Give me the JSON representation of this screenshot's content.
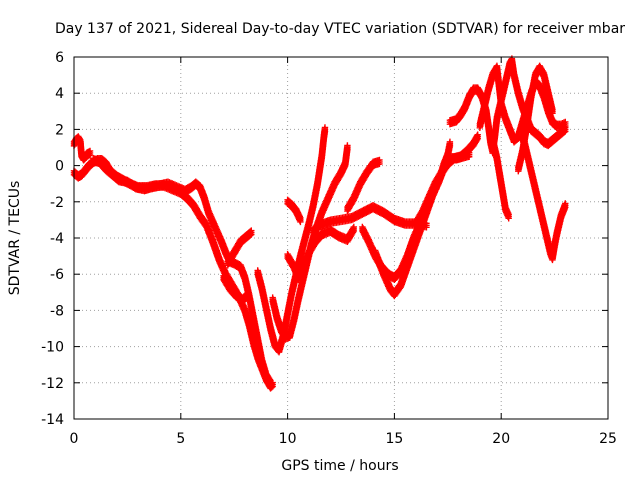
{
  "chart_data": {
    "type": "scatter",
    "title": "Day 137 of 2021, Sidereal Day-to-day VTEC variation (SDTVAR) for receiver mbar",
    "xlabel": "GPS time / hours",
    "ylabel": "SDTVAR / TECUs",
    "xlim": [
      0,
      25
    ],
    "ylim": [
      -14,
      6
    ],
    "xticks": [
      "0",
      "5",
      "10",
      "15",
      "20",
      "25"
    ],
    "yticks": [
      "-14",
      "-12",
      "-10",
      "-8",
      "-6",
      "-4",
      "-2",
      "0",
      "2",
      "4",
      "6"
    ],
    "grid": true,
    "marker": "+",
    "color": "#ff0000",
    "traces": [
      [
        [
          0.0,
          1.2
        ],
        [
          0.1,
          1.4
        ],
        [
          0.2,
          1.5
        ],
        [
          0.3,
          1.3
        ],
        [
          0.35,
          0.6
        ],
        [
          0.45,
          0.4
        ],
        [
          0.6,
          0.6
        ],
        [
          0.75,
          0.7
        ]
      ],
      [
        [
          0.0,
          -0.4
        ],
        [
          0.2,
          -0.6
        ],
        [
          0.35,
          -0.5
        ],
        [
          0.5,
          -0.3
        ],
        [
          0.7,
          0.0
        ],
        [
          0.9,
          0.2
        ],
        [
          1.1,
          0.3
        ],
        [
          1.3,
          0.3
        ],
        [
          1.5,
          0.1
        ],
        [
          1.7,
          -0.3
        ],
        [
          2.0,
          -0.6
        ],
        [
          2.3,
          -0.8
        ],
        [
          2.6,
          -1.0
        ],
        [
          3.0,
          -1.2
        ],
        [
          3.4,
          -1.2
        ],
        [
          3.8,
          -1.1
        ],
        [
          4.2,
          -1.1
        ],
        [
          4.6,
          -1.3
        ],
        [
          5.0,
          -1.5
        ],
        [
          5.3,
          -1.8
        ],
        [
          5.6,
          -2.2
        ],
        [
          5.9,
          -2.8
        ],
        [
          6.2,
          -3.3
        ],
        [
          6.5,
          -4.2
        ],
        [
          6.8,
          -5.2
        ],
        [
          7.1,
          -6.0
        ],
        [
          7.4,
          -6.6
        ],
        [
          7.7,
          -7.2
        ],
        [
          8.0,
          -8.0
        ],
        [
          8.2,
          -8.8
        ],
        [
          8.4,
          -9.8
        ],
        [
          8.6,
          -10.6
        ],
        [
          8.8,
          -11.2
        ],
        [
          9.0,
          -11.8
        ],
        [
          9.2,
          -12.2
        ],
        [
          9.3,
          -12.1
        ]
      ],
      [
        [
          0.9,
          0.3
        ],
        [
          1.2,
          0.2
        ],
        [
          1.5,
          -0.2
        ],
        [
          1.8,
          -0.5
        ],
        [
          2.1,
          -0.8
        ],
        [
          2.5,
          -0.9
        ],
        [
          2.9,
          -1.2
        ],
        [
          3.3,
          -1.3
        ],
        [
          3.6,
          -1.2
        ],
        [
          4.0,
          -1.1
        ],
        [
          4.4,
          -1.0
        ],
        [
          4.8,
          -1.2
        ],
        [
          5.2,
          -1.4
        ],
        [
          5.5,
          -1.2
        ],
        [
          5.7,
          -1.0
        ],
        [
          5.9,
          -1.2
        ],
        [
          6.1,
          -1.8
        ],
        [
          6.3,
          -2.6
        ],
        [
          6.6,
          -3.4
        ],
        [
          6.9,
          -4.2
        ],
        [
          7.1,
          -4.8
        ],
        [
          7.3,
          -5.3
        ],
        [
          7.5,
          -5.4
        ],
        [
          7.8,
          -5.6
        ],
        [
          8.0,
          -6.2
        ],
        [
          8.2,
          -7.2
        ],
        [
          8.4,
          -8.4
        ],
        [
          8.6,
          -9.6
        ],
        [
          8.8,
          -10.8
        ],
        [
          9.0,
          -11.6
        ],
        [
          9.2,
          -12.0
        ]
      ],
      [
        [
          7.0,
          -6.2
        ],
        [
          7.3,
          -6.8
        ],
        [
          7.6,
          -7.2
        ],
        [
          7.9,
          -7.4
        ],
        [
          8.1,
          -7.2
        ]
      ],
      [
        [
          7.2,
          -5.4
        ],
        [
          7.5,
          -4.8
        ],
        [
          7.8,
          -4.2
        ],
        [
          8.1,
          -3.9
        ],
        [
          8.3,
          -3.7
        ]
      ],
      [
        [
          8.6,
          -5.9
        ],
        [
          8.8,
          -6.8
        ],
        [
          9.0,
          -7.9
        ],
        [
          9.2,
          -9.0
        ],
        [
          9.4,
          -9.9
        ],
        [
          9.6,
          -10.2
        ],
        [
          9.8,
          -9.4
        ],
        [
          10.0,
          -8.2
        ],
        [
          10.2,
          -7.0
        ],
        [
          10.4,
          -6.0
        ],
        [
          10.6,
          -5.0
        ],
        [
          10.8,
          -4.1
        ],
        [
          11.0,
          -3.2
        ],
        [
          11.2,
          -2.2
        ],
        [
          11.4,
          -1.0
        ],
        [
          11.6,
          0.5
        ],
        [
          11.7,
          1.6
        ],
        [
          11.75,
          2.0
        ]
      ],
      [
        [
          9.3,
          -7.4
        ],
        [
          9.5,
          -8.4
        ],
        [
          9.7,
          -9.1
        ],
        [
          9.9,
          -9.5
        ],
        [
          10.1,
          -9.4
        ],
        [
          10.3,
          -8.5
        ],
        [
          10.5,
          -7.4
        ],
        [
          10.7,
          -6.4
        ],
        [
          10.9,
          -5.4
        ],
        [
          11.1,
          -4.4
        ],
        [
          11.3,
          -3.6
        ],
        [
          11.6,
          -2.6
        ],
        [
          11.9,
          -1.8
        ],
        [
          12.2,
          -1.0
        ],
        [
          12.5,
          -0.4
        ],
        [
          12.7,
          0.1
        ],
        [
          12.8,
          1.0
        ]
      ],
      [
        [
          10.0,
          -5.0
        ],
        [
          10.3,
          -5.6
        ],
        [
          10.5,
          -6.2
        ],
        [
          10.7,
          -5.6
        ],
        [
          11.0,
          -4.8
        ],
        [
          11.3,
          -4.2
        ],
        [
          11.6,
          -3.8
        ],
        [
          12.0,
          -3.6
        ],
        [
          12.4,
          -3.9
        ],
        [
          12.8,
          -4.1
        ],
        [
          13.1,
          -3.5
        ]
      ],
      [
        [
          10.0,
          -2.0
        ],
        [
          10.2,
          -2.2
        ],
        [
          10.4,
          -2.5
        ],
        [
          10.6,
          -3.0
        ]
      ],
      [
        [
          11.2,
          -3.6
        ],
        [
          11.5,
          -3.3
        ],
        [
          12.0,
          -3.1
        ],
        [
          12.5,
          -3.0
        ],
        [
          13.0,
          -2.9
        ],
        [
          13.5,
          -2.6
        ],
        [
          14.0,
          -2.3
        ],
        [
          14.5,
          -2.6
        ],
        [
          15.0,
          -3.0
        ],
        [
          15.5,
          -3.2
        ],
        [
          16.0,
          -3.2
        ],
        [
          16.5,
          -3.3
        ]
      ],
      [
        [
          12.8,
          -2.4
        ],
        [
          13.1,
          -1.8
        ],
        [
          13.4,
          -1.0
        ],
        [
          13.7,
          -0.4
        ],
        [
          14.0,
          0.1
        ],
        [
          14.3,
          0.2
        ]
      ],
      [
        [
          13.5,
          -3.5
        ],
        [
          13.8,
          -4.2
        ],
        [
          14.1,
          -5.0
        ],
        [
          14.4,
          -5.6
        ],
        [
          14.7,
          -6.0
        ],
        [
          15.0,
          -6.2
        ],
        [
          15.3,
          -5.8
        ],
        [
          15.6,
          -5.0
        ],
        [
          15.9,
          -4.0
        ],
        [
          16.2,
          -3.2
        ],
        [
          16.5,
          -2.4
        ],
        [
          16.8,
          -1.6
        ],
        [
          17.1,
          -0.8
        ],
        [
          17.3,
          -0.2
        ],
        [
          17.5,
          0.3
        ]
      ],
      [
        [
          14.1,
          -4.8
        ],
        [
          14.5,
          -6.0
        ],
        [
          14.8,
          -6.8
        ],
        [
          15.0,
          -7.1
        ],
        [
          15.3,
          -6.6
        ],
        [
          15.6,
          -5.6
        ],
        [
          15.9,
          -4.6
        ],
        [
          16.2,
          -3.6
        ],
        [
          16.5,
          -2.6
        ],
        [
          16.8,
          -1.6
        ],
        [
          17.1,
          -0.8
        ],
        [
          17.3,
          0.0
        ],
        [
          17.5,
          0.6
        ],
        [
          17.6,
          1.2
        ]
      ],
      [
        [
          16.0,
          -3.2
        ],
        [
          16.3,
          -2.6
        ],
        [
          16.6,
          -1.8
        ],
        [
          16.9,
          -1.0
        ],
        [
          17.2,
          -0.4
        ],
        [
          17.5,
          0.1
        ],
        [
          17.8,
          0.4
        ],
        [
          18.1,
          0.5
        ],
        [
          18.4,
          0.8
        ],
        [
          18.7,
          1.2
        ],
        [
          18.9,
          1.6
        ]
      ],
      [
        [
          17.6,
          0.4
        ],
        [
          17.9,
          0.4
        ],
        [
          18.2,
          0.5
        ],
        [
          18.5,
          0.6
        ]
      ],
      [
        [
          17.6,
          2.4
        ],
        [
          17.9,
          2.5
        ],
        [
          18.1,
          2.8
        ],
        [
          18.3,
          3.2
        ],
        [
          18.5,
          3.8
        ],
        [
          18.7,
          4.2
        ],
        [
          18.9,
          4.2
        ],
        [
          19.1,
          3.8
        ],
        [
          19.3,
          3.0
        ],
        [
          19.4,
          2.2
        ],
        [
          19.5,
          1.3
        ],
        [
          19.6,
          0.8
        ],
        [
          19.7,
          1.6
        ],
        [
          19.8,
          2.6
        ],
        [
          20.0,
          3.6
        ],
        [
          20.2,
          4.6
        ],
        [
          20.4,
          5.6
        ],
        [
          20.5,
          5.8
        ],
        [
          20.6,
          5.0
        ],
        [
          20.8,
          4.0
        ],
        [
          21.0,
          3.2
        ],
        [
          21.2,
          2.6
        ],
        [
          21.4,
          2.0
        ],
        [
          21.6,
          1.8
        ],
        [
          21.8,
          1.6
        ],
        [
          22.0,
          1.3
        ],
        [
          22.2,
          1.2
        ],
        [
          22.4,
          1.4
        ],
        [
          22.6,
          1.6
        ],
        [
          22.8,
          1.8
        ],
        [
          23.0,
          2.0
        ]
      ],
      [
        [
          19.0,
          2.2
        ],
        [
          19.2,
          3.2
        ],
        [
          19.4,
          4.2
        ],
        [
          19.6,
          5.0
        ],
        [
          19.8,
          5.4
        ],
        [
          19.9,
          4.4
        ],
        [
          20.0,
          3.4
        ],
        [
          20.2,
          2.6
        ],
        [
          20.4,
          2.0
        ],
        [
          20.6,
          1.4
        ],
        [
          20.8,
          1.6
        ],
        [
          21.0,
          2.4
        ],
        [
          21.2,
          3.2
        ],
        [
          21.4,
          4.0
        ],
        [
          21.6,
          4.6
        ],
        [
          21.8,
          4.4
        ],
        [
          22.0,
          3.8
        ],
        [
          22.2,
          3.0
        ],
        [
          22.4,
          2.4
        ],
        [
          22.6,
          2.2
        ],
        [
          22.8,
          2.2
        ],
        [
          23.0,
          2.3
        ]
      ],
      [
        [
          19.6,
          1.4
        ],
        [
          19.8,
          0.4
        ],
        [
          20.0,
          -1.0
        ],
        [
          20.2,
          -2.4
        ],
        [
          20.35,
          -2.8
        ]
      ],
      [
        [
          20.8,
          -0.2
        ],
        [
          21.0,
          0.8
        ],
        [
          21.2,
          2.2
        ],
        [
          21.4,
          3.8
        ],
        [
          21.6,
          5.0
        ],
        [
          21.8,
          5.4
        ],
        [
          22.0,
          5.0
        ],
        [
          22.2,
          4.0
        ],
        [
          22.4,
          3.0
        ]
      ],
      [
        [
          20.9,
          1.8
        ],
        [
          21.1,
          1.2
        ],
        [
          21.3,
          0.2
        ],
        [
          21.5,
          -0.8
        ],
        [
          21.7,
          -1.8
        ],
        [
          21.9,
          -2.8
        ],
        [
          22.1,
          -3.8
        ],
        [
          22.3,
          -4.8
        ],
        [
          22.4,
          -5.1
        ],
        [
          22.5,
          -4.4
        ],
        [
          22.6,
          -3.8
        ],
        [
          22.8,
          -2.8
        ],
        [
          23.0,
          -2.2
        ]
      ]
    ]
  }
}
